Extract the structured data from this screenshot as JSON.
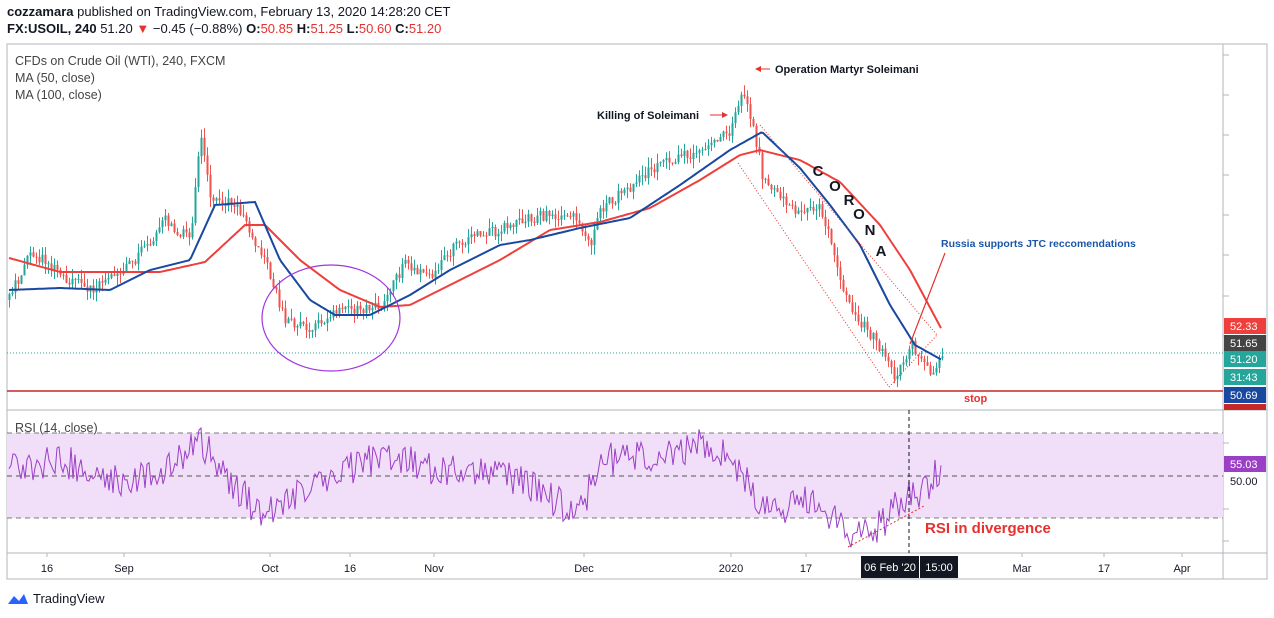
{
  "header": {
    "author": "cozzamara",
    "published": "published on TradingView.com, February 13, 2020 14:28:20 CET",
    "symbol": "FX:USOIL, 240",
    "last": "51.20",
    "change": "−0.45 (−0.88%)",
    "o_label": "O:",
    "o_val": "50.85",
    "h_label": "H:",
    "h_val": "51.25",
    "l_label": "L:",
    "l_val": "50.60",
    "c_label": "C:",
    "c_val": "51.20"
  },
  "legend": {
    "title": "CFDs on Crude Oil (WTI), 240, FXCM",
    "ma50": "MA (50, close)",
    "ma100": "MA (100, close)",
    "rsi": "RSI (14, close)"
  },
  "annotations": {
    "op_soleimani": "Operation Martyr Soleimani",
    "killing": "Killing of Soleimani",
    "corona": [
      "C",
      "O",
      "R",
      "O",
      "N",
      "A"
    ],
    "russia": "Russia supports JTC reccomendations",
    "stop": "stop",
    "rsi_div": "RSI in divergence"
  },
  "colors": {
    "ma50": "#1848a0",
    "ma100": "#ee3f3c",
    "rsi": "#9b3fc6",
    "rsi_band": "#f1def8",
    "up": "#26a69a",
    "down": "#ef5350",
    "stop": "#c62828",
    "ellipse": "#a035e0",
    "arrow": "#e5312f",
    "russia": "#1a56a8",
    "rsi_div": "#e5312f"
  },
  "price_axis": [
    {
      "text": "52.33",
      "bg": "#ee3f3c"
    },
    {
      "text": "51.65",
      "bg": "#444444"
    },
    {
      "text": "51.20",
      "bg": "#26a69a"
    },
    {
      "text": "31:43",
      "bg": "#26a69a"
    },
    {
      "text": "50.69",
      "bg": "#1848a0"
    }
  ],
  "rsi_axis": [
    {
      "text": "55.03",
      "bg": "#9b3fc6"
    },
    {
      "text": "50.00",
      "bg": "#ffffff"
    }
  ],
  "time_axis": [
    "16",
    "Sep",
    "Oct",
    "16",
    "Nov",
    "Dec",
    "2020",
    "17",
    "Mar",
    "17",
    "Apr"
  ],
  "time_cursor": {
    "date": "06 Feb '20",
    "time": "15:00"
  },
  "footer": {
    "brand": "TradingView"
  },
  "chart_data": {
    "type": "candlestick",
    "title": "CFDs on Crude Oil (WTI), 240, FXCM",
    "series": [
      {
        "name": "MA (50, close)"
      },
      {
        "name": "MA (100, close)"
      },
      {
        "name": "RSI (14, close)"
      }
    ],
    "rsi_levels": [
      70,
      50,
      30
    ],
    "close_last": 51.2,
    "ma50_last": 50.69,
    "ma100_last": 52.33,
    "rsi_last": 55.03
  }
}
